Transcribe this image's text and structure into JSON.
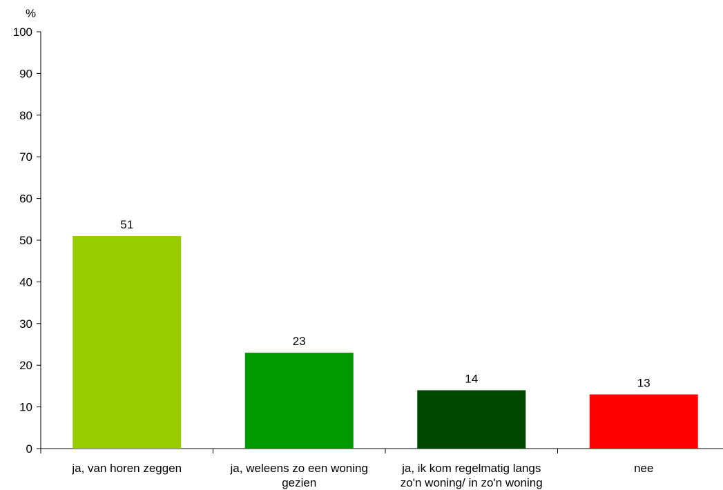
{
  "chart_data": {
    "type": "bar",
    "ylabel": "%",
    "ylim": [
      0,
      100
    ],
    "yticks": [
      0,
      10,
      20,
      30,
      40,
      50,
      60,
      70,
      80,
      90,
      100
    ],
    "grid": false,
    "categories": [
      [
        "ja, van horen zeggen"
      ],
      [
        "ja, weleens zo een woning",
        "gezien"
      ],
      [
        "ja, ik kom regelmatig langs",
        "zo'n woning/ in zo'n woning"
      ],
      [
        "nee"
      ]
    ],
    "values": [
      51,
      23,
      14,
      13
    ],
    "colors": [
      "#99cc00",
      "#009900",
      "#004800",
      "#ff0000"
    ],
    "data_labels": [
      "51",
      "23",
      "14",
      "13"
    ]
  }
}
